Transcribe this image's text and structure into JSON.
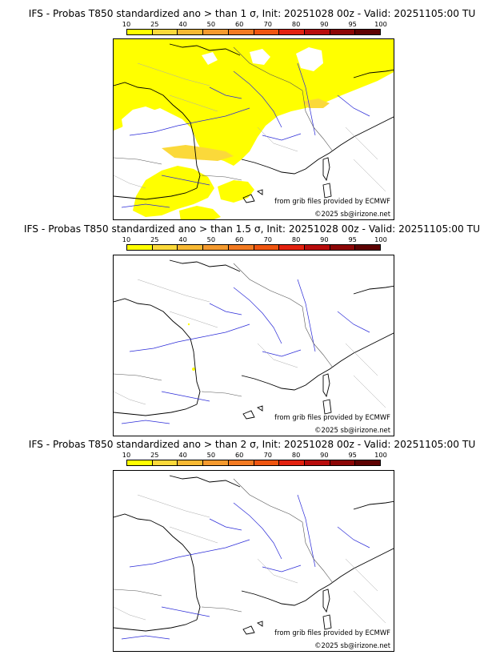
{
  "legend": {
    "ticks": [
      "10",
      "25",
      "40",
      "50",
      "60",
      "70",
      "80",
      "90",
      "95",
      "100"
    ],
    "colors": [
      "#ffff00",
      "#fbd93a",
      "#f8b933",
      "#f59a2e",
      "#f37a21",
      "#ef5510",
      "#e3210f",
      "#b80c0c",
      "#8c0606",
      "#5e0202"
    ]
  },
  "panels": [
    {
      "title": "IFS - Probas T850  standardized ano > than 1 σ, Init: 20251028 00z - Valid: 20251105:00 TU",
      "source_note": "from grib files provided by ECMWF",
      "copyright": "©2025 sb@irizone.net",
      "threshold_sigma": "1"
    },
    {
      "title": "IFS - Probas T850  standardized ano > than 1.5 σ, Init: 20251028 00z - Valid: 20251105:00 TU",
      "source_note": "from grib files provided by ECMWF",
      "copyright": "©2025 sb@irizone.net",
      "threshold_sigma": "1.5"
    },
    {
      "title": "IFS - Probas T850  standardized ano > than 2 σ, Init: 20251028 00z - Valid: 20251105:00 TU",
      "source_note": "from grib files provided by ECMWF",
      "copyright": "©2025 sb@irizone.net",
      "threshold_sigma": "2"
    }
  ]
}
